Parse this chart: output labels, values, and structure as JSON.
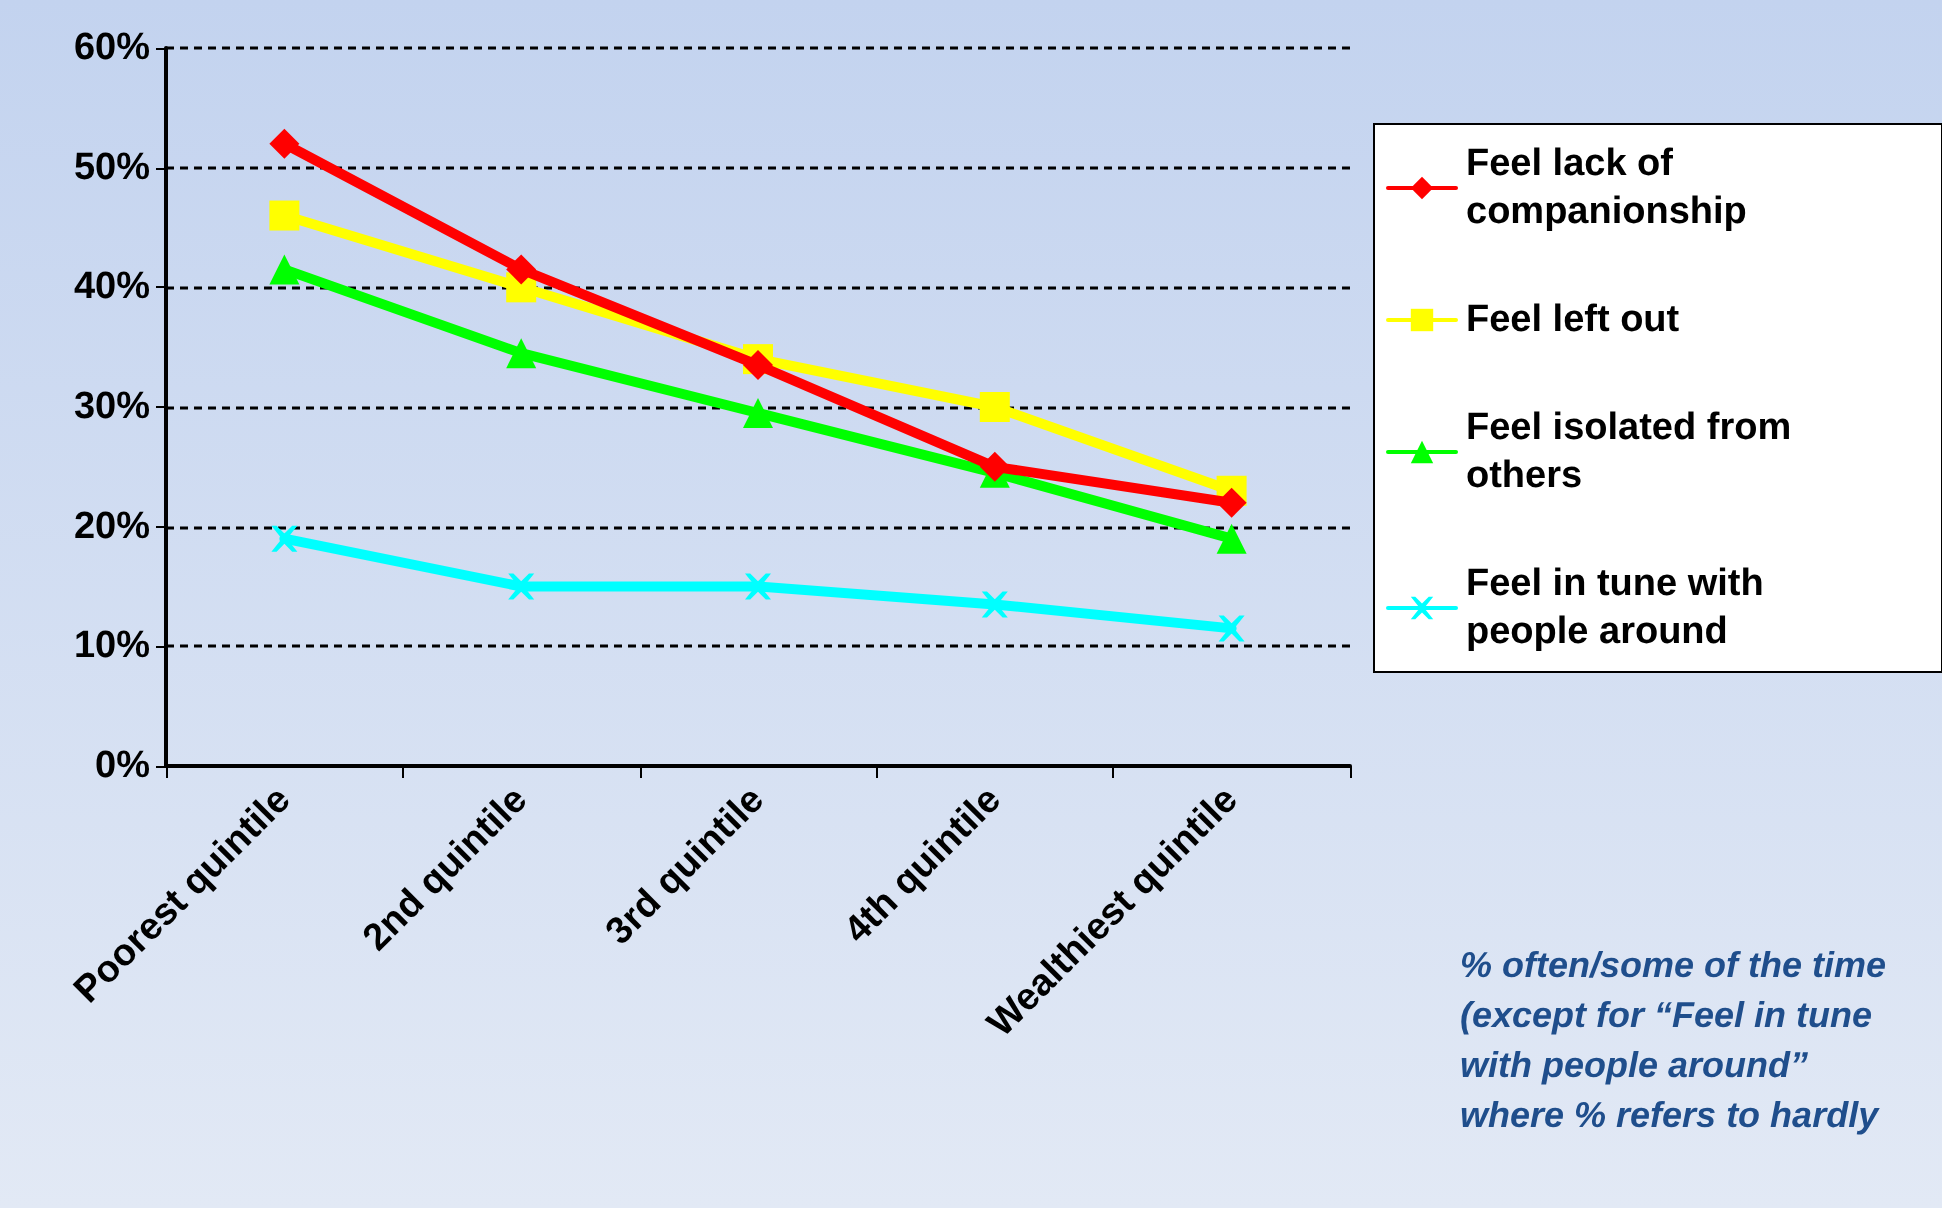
{
  "chart_data": {
    "type": "line",
    "categories": [
      "Poorest quintile",
      "2nd quintile",
      "3rd quintile",
      "4th quintile",
      "Wealthiest quintile"
    ],
    "series": [
      {
        "name": "Feel lack of companionship",
        "color": "#ff0000",
        "marker": "diamond",
        "values": [
          52,
          41.5,
          33.5,
          25,
          22
        ]
      },
      {
        "name": "Feel left out",
        "color": "#ffff00",
        "marker": "square",
        "values": [
          46,
          40,
          34,
          30,
          23
        ]
      },
      {
        "name": "Feel isolated from others",
        "color": "#00ff00",
        "marker": "triangle",
        "values": [
          41.5,
          34.5,
          29.5,
          24.5,
          19
        ]
      },
      {
        "name": "Feel in tune with people around",
        "color": "#00ffff",
        "marker": "cross",
        "values": [
          19,
          15,
          15,
          13.5,
          11.5
        ]
      }
    ],
    "ylim": [
      0,
      60
    ],
    "yticks": [
      {
        "value": 0,
        "label": "0%"
      },
      {
        "value": 10,
        "label": "10%"
      },
      {
        "value": 20,
        "label": "20%"
      },
      {
        "value": 30,
        "label": "30%"
      },
      {
        "value": 40,
        "label": "40%"
      },
      {
        "value": 50,
        "label": "50%"
      },
      {
        "value": 60,
        "label": "60%"
      }
    ],
    "grid": "y",
    "legend": "right",
    "line_style": "solid",
    "annotations": [
      "% often/some of the time (except for “Feel in tune with people around” where % refers to hardly"
    ]
  }
}
